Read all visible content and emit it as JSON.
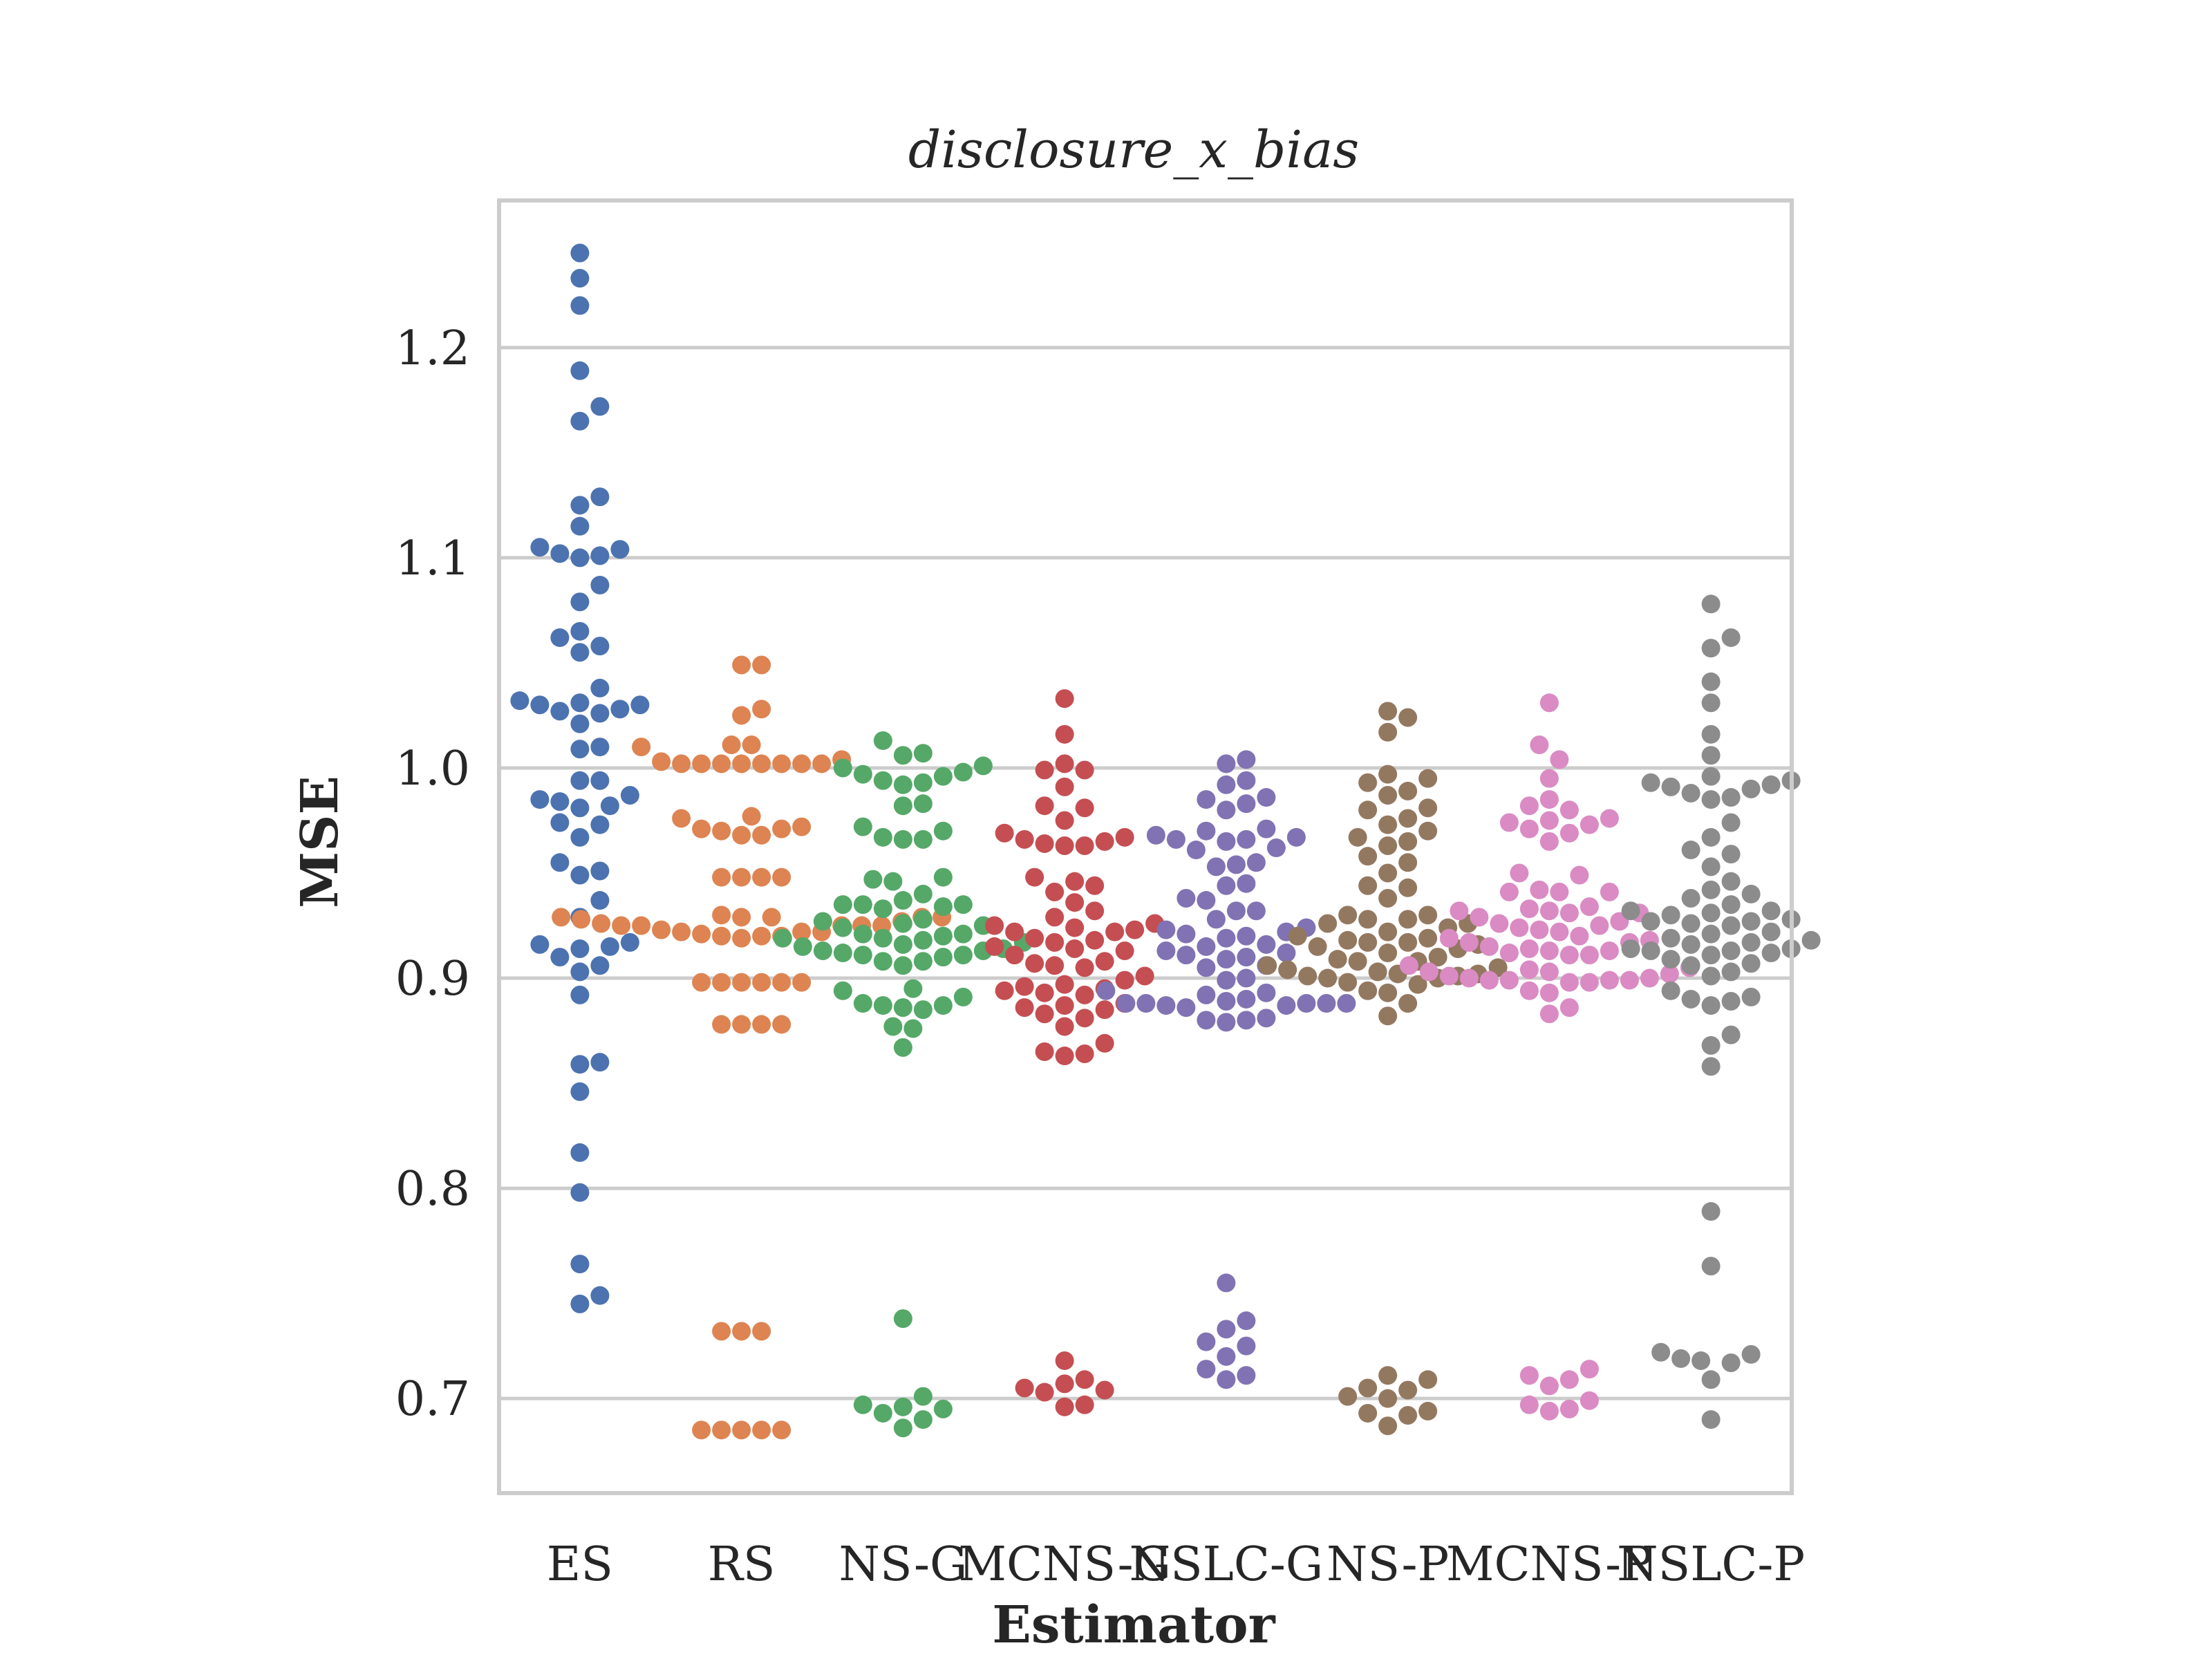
{
  "chart_data": {
    "type": "scatter",
    "subtype": "swarm",
    "title": "disclosure_x_bias",
    "xlabel": "Estimator",
    "ylabel": "MSE",
    "ylim": [
      0.655,
      1.27
    ],
    "yticks": [
      0.7,
      0.8,
      0.9,
      1.0,
      1.1,
      1.2
    ],
    "ytick_labels": [
      "0.7",
      "0.8",
      "0.9",
      "1.0",
      "1.1",
      "1.2"
    ],
    "grid": "horizontal",
    "categories": [
      "ES",
      "RS",
      "NS-G",
      "MCNS-G",
      "NSLC-G",
      "NS-P",
      "MCNS-P",
      "NSLC-P"
    ],
    "colors": [
      "#4c72b0",
      "#dd8452",
      "#55a868",
      "#c44e52",
      "#8172b3",
      "#937860",
      "#da8bc3",
      "#8c8c8c"
    ],
    "series": [
      {
        "values": [
          1.245,
          1.233,
          1.22,
          1.189,
          1.172,
          1.165,
          1.129,
          1.125,
          1.115,
          1.105,
          1.104,
          1.102,
          1.101,
          1.1,
          1.087,
          1.079,
          1.065,
          1.062,
          1.058,
          1.055,
          1.038,
          1.032,
          1.031,
          1.03,
          1.03,
          1.028,
          1.027,
          1.026,
          1.021,
          1.01,
          1.009,
          0.994,
          0.994,
          0.987,
          0.985,
          0.984,
          0.982,
          0.981,
          0.974,
          0.973,
          0.967,
          0.955,
          0.951,
          0.949,
          0.937,
          0.929,
          0.917,
          0.916,
          0.915,
          0.914,
          0.91,
          0.906,
          0.903,
          0.892,
          0.86,
          0.859,
          0.846,
          0.817,
          0.798,
          0.764,
          0.749,
          0.745
        ]
      },
      {
        "values": [
          1.049,
          1.049,
          1.028,
          1.025,
          1.011,
          1.011,
          1.01,
          1.004,
          1.003,
          1.002,
          1.002,
          1.002,
          1.002,
          1.002,
          1.002,
          1.002,
          1.002,
          0.977,
          0.976,
          0.972,
          0.971,
          0.971,
          0.97,
          0.968,
          0.968,
          0.948,
          0.948,
          0.948,
          0.948,
          0.93,
          0.929,
          0.929,
          0.929,
          0.929,
          0.929,
          0.928,
          0.927,
          0.926,
          0.925,
          0.925,
          0.925,
          0.925,
          0.925,
          0.923,
          0.922,
          0.922,
          0.922,
          0.921,
          0.92,
          0.92,
          0.92,
          0.919,
          0.898,
          0.898,
          0.898,
          0.898,
          0.898,
          0.898,
          0.878,
          0.878,
          0.878,
          0.878,
          0.732,
          0.732,
          0.732,
          0.685,
          0.685,
          0.685,
          0.685,
          0.685
        ]
      },
      {
        "values": [
          1.013,
          1.007,
          1.006,
          1.001,
          1.0,
          0.998,
          0.997,
          0.996,
          0.994,
          0.993,
          0.992,
          0.983,
          0.982,
          0.972,
          0.97,
          0.967,
          0.966,
          0.966,
          0.948,
          0.947,
          0.946,
          0.94,
          0.937,
          0.935,
          0.935,
          0.935,
          0.934,
          0.933,
          0.928,
          0.927,
          0.926,
          0.925,
          0.924,
          0.921,
          0.921,
          0.92,
          0.919,
          0.919,
          0.918,
          0.917,
          0.916,
          0.915,
          0.914,
          0.913,
          0.913,
          0.912,
          0.911,
          0.911,
          0.91,
          0.908,
          0.908,
          0.906,
          0.895,
          0.894,
          0.891,
          0.888,
          0.887,
          0.887,
          0.886,
          0.885,
          0.877,
          0.876,
          0.867,
          0.738,
          0.701,
          0.697,
          0.696,
          0.695,
          0.693,
          0.69,
          0.686
        ]
      },
      {
        "values": [
          1.033,
          1.016,
          1.002,
          0.999,
          0.999,
          0.991,
          0.982,
          0.981,
          0.975,
          0.969,
          0.967,
          0.966,
          0.965,
          0.964,
          0.963,
          0.963,
          0.948,
          0.946,
          0.944,
          0.941,
          0.936,
          0.932,
          0.929,
          0.926,
          0.925,
          0.924,
          0.923,
          0.922,
          0.922,
          0.919,
          0.918,
          0.917,
          0.915,
          0.914,
          0.913,
          0.911,
          0.908,
          0.907,
          0.906,
          0.905,
          0.901,
          0.899,
          0.897,
          0.896,
          0.895,
          0.894,
          0.893,
          0.892,
          0.888,
          0.887,
          0.886,
          0.885,
          0.883,
          0.881,
          0.877,
          0.869,
          0.865,
          0.864,
          0.863,
          0.718,
          0.709,
          0.707,
          0.705,
          0.704,
          0.703,
          0.697,
          0.696
        ]
      },
      {
        "values": [
          1.004,
          1.002,
          0.994,
          0.992,
          0.986,
          0.985,
          0.983,
          0.98,
          0.971,
          0.97,
          0.968,
          0.967,
          0.966,
          0.966,
          0.965,
          0.962,
          0.961,
          0.955,
          0.954,
          0.953,
          0.945,
          0.944,
          0.938,
          0.937,
          0.932,
          0.932,
          0.928,
          0.924,
          0.923,
          0.922,
          0.921,
          0.92,
          0.919,
          0.916,
          0.915,
          0.913,
          0.912,
          0.911,
          0.91,
          0.909,
          0.906,
          0.905,
          0.9,
          0.899,
          0.894,
          0.893,
          0.892,
          0.89,
          0.889,
          0.888,
          0.888,
          0.888,
          0.888,
          0.888,
          0.887,
          0.887,
          0.886,
          0.881,
          0.88,
          0.88,
          0.879,
          0.755,
          0.737,
          0.733,
          0.727,
          0.725,
          0.72,
          0.714,
          0.711,
          0.709
        ]
      },
      {
        "values": [
          1.027,
          1.024,
          1.017,
          0.997,
          0.995,
          0.993,
          0.989,
          0.987,
          0.981,
          0.98,
          0.976,
          0.973,
          0.97,
          0.967,
          0.965,
          0.963,
          0.958,
          0.955,
          0.95,
          0.944,
          0.943,
          0.938,
          0.93,
          0.93,
          0.928,
          0.928,
          0.926,
          0.926,
          0.924,
          0.922,
          0.92,
          0.919,
          0.918,
          0.917,
          0.917,
          0.916,
          0.915,
          0.914,
          0.912,
          0.91,
          0.909,
          0.908,
          0.908,
          0.906,
          0.905,
          0.904,
          0.903,
          0.902,
          0.902,
          0.901,
          0.901,
          0.9,
          0.9,
          0.898,
          0.897,
          0.894,
          0.893,
          0.888,
          0.882,
          0.711,
          0.709,
          0.705,
          0.704,
          0.701,
          0.7,
          0.694,
          0.693,
          0.692,
          0.687
        ]
      },
      {
        "values": [
          1.031,
          1.011,
          1.004,
          0.995,
          0.985,
          0.982,
          0.98,
          0.976,
          0.975,
          0.974,
          0.973,
          0.971,
          0.969,
          0.965,
          0.95,
          0.949,
          0.942,
          0.941,
          0.941,
          0.941,
          0.934,
          0.933,
          0.932,
          0.932,
          0.931,
          0.931,
          0.929,
          0.927,
          0.926,
          0.925,
          0.924,
          0.923,
          0.922,
          0.92,
          0.919,
          0.918,
          0.917,
          0.917,
          0.915,
          0.914,
          0.913,
          0.913,
          0.912,
          0.911,
          0.911,
          0.906,
          0.905,
          0.904,
          0.903,
          0.903,
          0.902,
          0.901,
          0.9,
          0.9,
          0.899,
          0.899,
          0.899,
          0.899,
          0.898,
          0.898,
          0.894,
          0.893,
          0.886,
          0.883,
          0.714,
          0.711,
          0.709,
          0.706,
          0.699,
          0.697,
          0.695,
          0.694
        ]
      },
      {
        "values": [
          1.078,
          1.062,
          1.057,
          1.041,
          1.031,
          1.016,
          1.006,
          0.996,
          0.994,
          0.993,
          0.992,
          0.991,
          0.99,
          0.988,
          0.986,
          0.985,
          0.974,
          0.967,
          0.961,
          0.959,
          0.953,
          0.946,
          0.942,
          0.94,
          0.938,
          0.935,
          0.932,
          0.932,
          0.931,
          0.93,
          0.928,
          0.927,
          0.927,
          0.926,
          0.925,
          0.922,
          0.921,
          0.919,
          0.918,
          0.917,
          0.916,
          0.914,
          0.914,
          0.913,
          0.913,
          0.912,
          0.911,
          0.909,
          0.907,
          0.906,
          0.903,
          0.901,
          0.894,
          0.891,
          0.89,
          0.889,
          0.887,
          0.873,
          0.868,
          0.858,
          0.789,
          0.763,
          0.722,
          0.721,
          0.719,
          0.718,
          0.717,
          0.709,
          0.69
        ]
      }
    ]
  }
}
